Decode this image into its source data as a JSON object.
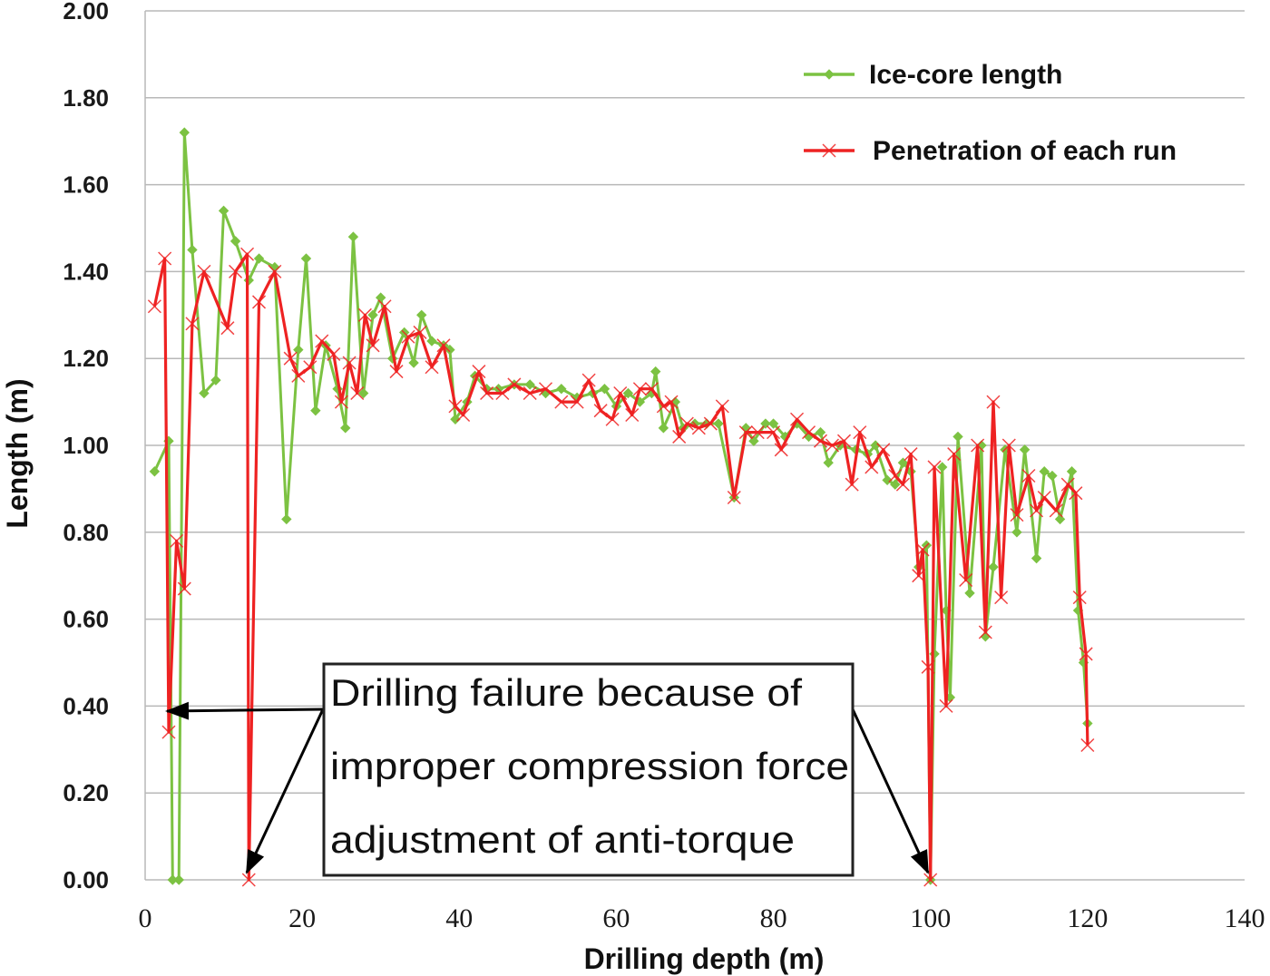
{
  "chart_data": {
    "type": "line",
    "xlabel": "Drilling depth (m)",
    "ylabel": "Length (m)",
    "xlim": [
      0,
      140
    ],
    "ylim": [
      0,
      2.0
    ],
    "x_ticks": [
      "0",
      "20",
      "40",
      "60",
      "80",
      "100",
      "120",
      "140"
    ],
    "y_ticks": [
      "0.00",
      "0.20",
      "0.40",
      "0.60",
      "0.80",
      "1.00",
      "1.20",
      "1.40",
      "1.60",
      "1.80",
      "2.00"
    ],
    "grid": "horizontal",
    "legend_position": "top-right",
    "annotation": {
      "lines": [
        "Drilling failure because of",
        "improper compression force",
        "adjustment of anti-torque"
      ]
    },
    "series": [
      {
        "name": "Ice-core length",
        "color": "#7cc242",
        "marker": "diamond",
        "points": [
          [
            1.2,
            0.94
          ],
          [
            3.0,
            1.01
          ],
          [
            3.5,
            0.0
          ],
          [
            4.3,
            0.0
          ],
          [
            5.0,
            1.72
          ],
          [
            6.0,
            1.45
          ],
          [
            7.5,
            1.12
          ],
          [
            9.0,
            1.15
          ],
          [
            10.0,
            1.54
          ],
          [
            11.5,
            1.47
          ],
          [
            13.2,
            1.38
          ],
          [
            14.5,
            1.43
          ],
          [
            16.5,
            1.41
          ],
          [
            18.0,
            0.83
          ],
          [
            19.5,
            1.22
          ],
          [
            20.5,
            1.43
          ],
          [
            21.7,
            1.08
          ],
          [
            23.0,
            1.23
          ],
          [
            24.5,
            1.13
          ],
          [
            25.5,
            1.04
          ],
          [
            26.5,
            1.48
          ],
          [
            27.8,
            1.12
          ],
          [
            29.0,
            1.3
          ],
          [
            30.0,
            1.34
          ],
          [
            31.5,
            1.2
          ],
          [
            33.0,
            1.26
          ],
          [
            34.2,
            1.19
          ],
          [
            35.2,
            1.3
          ],
          [
            36.5,
            1.24
          ],
          [
            38.0,
            1.23
          ],
          [
            38.8,
            1.22
          ],
          [
            39.5,
            1.06
          ],
          [
            41.0,
            1.1
          ],
          [
            42.0,
            1.16
          ],
          [
            43.5,
            1.13
          ],
          [
            45.0,
            1.13
          ],
          [
            47.0,
            1.14
          ],
          [
            49.0,
            1.14
          ],
          [
            51.0,
            1.12
          ],
          [
            53.0,
            1.13
          ],
          [
            55.0,
            1.11
          ],
          [
            57.0,
            1.12
          ],
          [
            58.5,
            1.13
          ],
          [
            60.0,
            1.09
          ],
          [
            61.5,
            1.12
          ],
          [
            63.0,
            1.1
          ],
          [
            64.5,
            1.12
          ],
          [
            65.0,
            1.17
          ],
          [
            66.0,
            1.04
          ],
          [
            67.5,
            1.1
          ],
          [
            68.5,
            1.04
          ],
          [
            70.0,
            1.05
          ],
          [
            71.5,
            1.05
          ],
          [
            73.0,
            1.05
          ],
          [
            75.0,
            0.88
          ],
          [
            76.5,
            1.04
          ],
          [
            77.5,
            1.01
          ],
          [
            79.0,
            1.05
          ],
          [
            80.0,
            1.05
          ],
          [
            81.5,
            1.02
          ],
          [
            83.0,
            1.05
          ],
          [
            84.5,
            1.02
          ],
          [
            86.0,
            1.03
          ],
          [
            87.0,
            0.96
          ],
          [
            88.5,
            1.0
          ],
          [
            90.5,
            0.99
          ],
          [
            92.0,
            0.98
          ],
          [
            93.0,
            1.0
          ],
          [
            94.5,
            0.92
          ],
          [
            95.5,
            0.91
          ],
          [
            96.5,
            0.96
          ],
          [
            97.5,
            0.94
          ],
          [
            98.5,
            0.72
          ],
          [
            99.5,
            0.77
          ],
          [
            100.0,
            0.0
          ],
          [
            100.5,
            0.52
          ],
          [
            101.5,
            0.95
          ],
          [
            102.0,
            0.62
          ],
          [
            102.5,
            0.42
          ],
          [
            103.5,
            1.02
          ],
          [
            105.0,
            0.66
          ],
          [
            106.5,
            1.0
          ],
          [
            107.0,
            0.56
          ],
          [
            108.0,
            0.72
          ],
          [
            109.5,
            0.99
          ],
          [
            111.0,
            0.8
          ],
          [
            112.0,
            0.99
          ],
          [
            113.5,
            0.74
          ],
          [
            114.5,
            0.94
          ],
          [
            115.5,
            0.93
          ],
          [
            116.5,
            0.83
          ],
          [
            118.0,
            0.94
          ],
          [
            118.8,
            0.62
          ],
          [
            119.5,
            0.5
          ],
          [
            120.0,
            0.36
          ]
        ]
      },
      {
        "name": "Penetration of each run",
        "color": "#ee2222",
        "marker": "x",
        "points": [
          [
            1.2,
            1.32
          ],
          [
            2.5,
            1.43
          ],
          [
            3.0,
            0.34
          ],
          [
            4.0,
            0.78
          ],
          [
            5.0,
            0.67
          ],
          [
            6.0,
            1.28
          ],
          [
            7.5,
            1.4
          ],
          [
            10.5,
            1.27
          ],
          [
            11.5,
            1.4
          ],
          [
            13.0,
            1.44
          ],
          [
            13.2,
            0.0
          ],
          [
            14.5,
            1.33
          ],
          [
            16.5,
            1.4
          ],
          [
            18.5,
            1.2
          ],
          [
            19.5,
            1.16
          ],
          [
            21.0,
            1.18
          ],
          [
            22.5,
            1.24
          ],
          [
            24.0,
            1.21
          ],
          [
            25.0,
            1.1
          ],
          [
            26.0,
            1.19
          ],
          [
            27.0,
            1.12
          ],
          [
            28.0,
            1.3
          ],
          [
            29.0,
            1.23
          ],
          [
            30.5,
            1.32
          ],
          [
            32.0,
            1.17
          ],
          [
            33.5,
            1.25
          ],
          [
            35.0,
            1.26
          ],
          [
            36.5,
            1.18
          ],
          [
            38.0,
            1.23
          ],
          [
            39.5,
            1.09
          ],
          [
            40.5,
            1.07
          ],
          [
            42.5,
            1.17
          ],
          [
            43.5,
            1.12
          ],
          [
            45.5,
            1.12
          ],
          [
            47.0,
            1.14
          ],
          [
            49.0,
            1.12
          ],
          [
            51.0,
            1.13
          ],
          [
            53.0,
            1.1
          ],
          [
            55.0,
            1.1
          ],
          [
            56.5,
            1.15
          ],
          [
            58.0,
            1.08
          ],
          [
            59.5,
            1.06
          ],
          [
            60.5,
            1.12
          ],
          [
            62.0,
            1.07
          ],
          [
            63.0,
            1.13
          ],
          [
            64.5,
            1.13
          ],
          [
            66.0,
            1.09
          ],
          [
            67.0,
            1.1
          ],
          [
            68.0,
            1.02
          ],
          [
            69.0,
            1.05
          ],
          [
            70.5,
            1.04
          ],
          [
            72.0,
            1.05
          ],
          [
            73.5,
            1.09
          ],
          [
            75.0,
            0.88
          ],
          [
            76.5,
            1.03
          ],
          [
            78.0,
            1.03
          ],
          [
            80.0,
            1.03
          ],
          [
            81.0,
            0.99
          ],
          [
            83.0,
            1.06
          ],
          [
            84.5,
            1.03
          ],
          [
            86.0,
            1.01
          ],
          [
            87.5,
            1.0
          ],
          [
            89.0,
            1.01
          ],
          [
            90.0,
            0.91
          ],
          [
            91.0,
            1.03
          ],
          [
            92.5,
            0.95
          ],
          [
            94.0,
            0.99
          ],
          [
            95.5,
            0.93
          ],
          [
            96.5,
            0.91
          ],
          [
            97.5,
            0.98
          ],
          [
            98.5,
            0.7
          ],
          [
            99.0,
            0.76
          ],
          [
            99.7,
            0.49
          ],
          [
            100.0,
            0.0
          ],
          [
            100.5,
            0.95
          ],
          [
            102.0,
            0.4
          ],
          [
            103.0,
            0.98
          ],
          [
            104.5,
            0.69
          ],
          [
            106.0,
            1.0
          ],
          [
            107.0,
            0.57
          ],
          [
            108.0,
            1.1
          ],
          [
            109.0,
            0.65
          ],
          [
            110.0,
            1.0
          ],
          [
            111.0,
            0.84
          ],
          [
            112.5,
            0.93
          ],
          [
            113.5,
            0.85
          ],
          [
            114.5,
            0.88
          ],
          [
            116.0,
            0.85
          ],
          [
            117.5,
            0.91
          ],
          [
            118.5,
            0.89
          ],
          [
            119.0,
            0.65
          ],
          [
            119.8,
            0.52
          ],
          [
            120.0,
            0.31
          ]
        ]
      }
    ]
  }
}
